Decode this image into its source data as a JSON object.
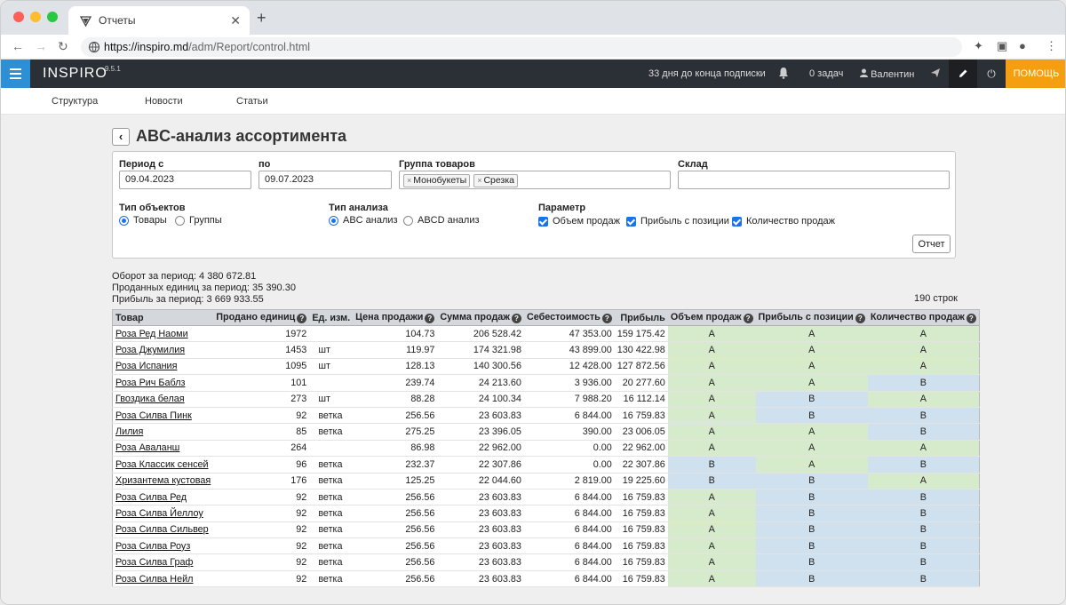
{
  "browser": {
    "tab_title": "Отчеты",
    "url_host": "https://inspiro.md",
    "url_path": "/adm/Report/control.html"
  },
  "header": {
    "logo": "INSPIRO",
    "version": "9.5.1",
    "subscription": "33 дня до конца подписки",
    "tasks": "0 задач",
    "user": "Валентин",
    "help": "ПОМОЩЬ"
  },
  "subnav": [
    "Структура",
    "Новости",
    "Статьи"
  ],
  "page": {
    "title": "ABC-анализ ассортимента"
  },
  "filters": {
    "period_from_label": "Период с",
    "period_from": "09.04.2023",
    "period_to_label": "по",
    "period_to": "09.07.2023",
    "group_label": "Группа товаров",
    "groups": [
      "Монобукеты",
      "Срезка"
    ],
    "warehouse_label": "Склад",
    "warehouse": "",
    "object_type_label": "Тип объектов",
    "object_types": [
      "Товары",
      "Группы"
    ],
    "analysis_type_label": "Тип анализа",
    "analysis_types": [
      "ABC анализ",
      "ABCD анализ"
    ],
    "param_label": "Параметр",
    "params": [
      "Объем продаж",
      "Прибыль с позиции",
      "Количество продаж"
    ],
    "report_button": "Отчет"
  },
  "stats": {
    "turnover": "Оборот за период: 4 380 672.81",
    "units": "Проданных единиц за период: 35 390.30",
    "profit": "Прибыль за период: 3 669 933.55",
    "row_count": "190 строк"
  },
  "table": {
    "headers": [
      "Товар",
      "Продано единиц",
      "Ед. изм.",
      "Цена продажи",
      "Сумма продаж",
      "Себестоимость",
      "Прибыль",
      "Объем продаж",
      "Прибыль с позиции",
      "Количество продаж"
    ],
    "rows": [
      [
        "Роза Ред Наоми",
        "1972",
        "",
        "104.73",
        "206 528.42",
        "47 353.00",
        "159 175.42",
        "A",
        "A",
        "A"
      ],
      [
        "Роза Джумилия",
        "1453",
        "шт",
        "119.97",
        "174 321.98",
        "43 899.00",
        "130 422.98",
        "A",
        "A",
        "A"
      ],
      [
        "Роза Испания",
        "1095",
        "шт",
        "128.13",
        "140 300.56",
        "12 428.00",
        "127 872.56",
        "A",
        "A",
        "A"
      ],
      [
        "Роза Рич Баблз",
        "101",
        "",
        "239.74",
        "24 213.60",
        "3 936.00",
        "20 277.60",
        "A",
        "A",
        "B"
      ],
      [
        "Гвоздика белая",
        "273",
        "шт",
        "88.28",
        "24 100.34",
        "7 988.20",
        "16 112.14",
        "A",
        "B",
        "A"
      ],
      [
        "Роза Силва Пинк",
        "92",
        "ветка",
        "256.56",
        "23 603.83",
        "6 844.00",
        "16 759.83",
        "A",
        "B",
        "B"
      ],
      [
        "Лилия",
        "85",
        "ветка",
        "275.25",
        "23 396.05",
        "390.00",
        "23 006.05",
        "A",
        "A",
        "B"
      ],
      [
        "Роза Аваланш",
        "264",
        "",
        "86.98",
        "22 962.00",
        "0.00",
        "22 962.00",
        "A",
        "A",
        "A"
      ],
      [
        "Роза Классик сенсей",
        "96",
        "ветка",
        "232.37",
        "22 307.86",
        "0.00",
        "22 307.86",
        "B",
        "A",
        "B"
      ],
      [
        "Хризантема кустовая",
        "176",
        "ветка",
        "125.25",
        "22 044.60",
        "2 819.00",
        "19 225.60",
        "B",
        "B",
        "A"
      ],
      [
        "Роза Силва Ред",
        "92",
        "ветка",
        "256.56",
        "23 603.83",
        "6 844.00",
        "16 759.83",
        "A",
        "B",
        "B"
      ],
      [
        "Роза Силва Йеллоу",
        "92",
        "ветка",
        "256.56",
        "23 603.83",
        "6 844.00",
        "16 759.83",
        "A",
        "B",
        "B"
      ],
      [
        "Роза Силва Сильвер",
        "92",
        "ветка",
        "256.56",
        "23 603.83",
        "6 844.00",
        "16 759.83",
        "A",
        "B",
        "B"
      ],
      [
        "Роза Силва Роуз",
        "92",
        "ветка",
        "256.56",
        "23 603.83",
        "6 844.00",
        "16 759.83",
        "A",
        "B",
        "B"
      ],
      [
        "Роза Силва Граф",
        "92",
        "ветка",
        "256.56",
        "23 603.83",
        "6 844.00",
        "16 759.83",
        "A",
        "B",
        "B"
      ],
      [
        "Роза Силва Нейл",
        "92",
        "ветка",
        "256.56",
        "23 603.83",
        "6 844.00",
        "16 759.83",
        "A",
        "B",
        "B"
      ]
    ]
  },
  "colors": {
    "accent": "#2d8fd5",
    "help": "#f59f10",
    "grade_a": "#d6ebcc",
    "grade_b": "#cfe1ef"
  }
}
